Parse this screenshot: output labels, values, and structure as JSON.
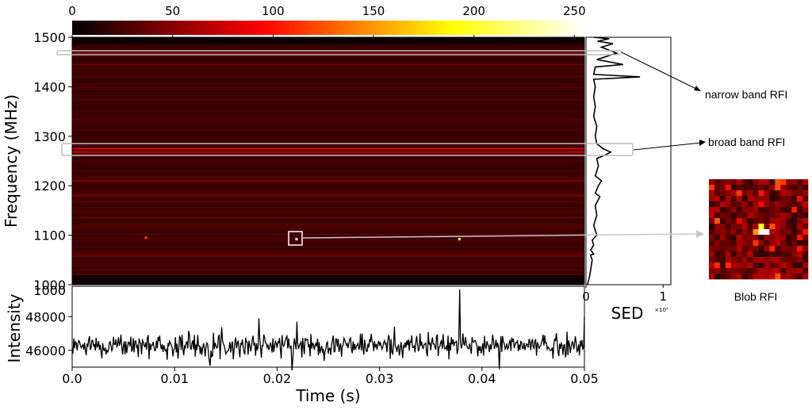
{
  "chart_data": [
    {
      "type": "heatmap",
      "panel": "spectrogram",
      "xlim": [
        0.0,
        0.05
      ],
      "ylim": [
        1000,
        1500
      ],
      "ylabel": "Frequency (MHz)",
      "yticks": [
        "1000",
        "1100",
        "1200",
        "1300",
        "1400",
        "1500"
      ],
      "colorbar": {
        "range": [
          0,
          255
        ],
        "ticks": [
          "0",
          "50",
          "100",
          "150",
          "200",
          "250"
        ],
        "colormap": "hot"
      },
      "background_level": 20,
      "rfi_lines": [
        {
          "freq": 1468,
          "level": 55
        },
        {
          "freq": 1445,
          "level": 40
        },
        {
          "freq": 1420,
          "level": 35
        },
        {
          "freq": 1275,
          "level": 95
        },
        {
          "freq": 1268,
          "level": 85
        },
        {
          "freq": 1262,
          "level": 70
        },
        {
          "freq": 1210,
          "level": 50
        },
        {
          "freq": 1180,
          "level": 45
        },
        {
          "freq": 1060,
          "level": 40
        }
      ],
      "blobs": [
        {
          "t": 0.0219,
          "freq": 1092,
          "level": 240
        },
        {
          "t": 0.0378,
          "freq": 1092,
          "level": 200
        },
        {
          "t": 0.0072,
          "freq": 1095,
          "level": 120
        }
      ]
    },
    {
      "type": "line",
      "panel": "SED",
      "xlabel": "SED",
      "xtick_labels": [
        "0",
        "1"
      ],
      "x_multiplier": "×10⁵",
      "xlim": [
        0,
        1.1
      ],
      "ylim": [
        1000,
        1500
      ],
      "points": [
        [
          0.02,
          1000
        ],
        [
          0.05,
          1020
        ],
        [
          0.08,
          1050
        ],
        [
          0.06,
          1060
        ],
        [
          0.1,
          1062
        ],
        [
          0.06,
          1070
        ],
        [
          0.1,
          1080
        ],
        [
          0.08,
          1090
        ],
        [
          0.14,
          1100
        ],
        [
          0.1,
          1120
        ],
        [
          0.14,
          1140
        ],
        [
          0.12,
          1160
        ],
        [
          0.18,
          1178
        ],
        [
          0.12,
          1185
        ],
        [
          0.16,
          1200
        ],
        [
          0.2,
          1210
        ],
        [
          0.12,
          1220
        ],
        [
          0.16,
          1240
        ],
        [
          0.14,
          1255
        ],
        [
          0.25,
          1262
        ],
        [
          0.32,
          1268
        ],
        [
          0.22,
          1275
        ],
        [
          0.14,
          1285
        ],
        [
          0.12,
          1300
        ],
        [
          0.14,
          1320
        ],
        [
          0.1,
          1340
        ],
        [
          0.12,
          1360
        ],
        [
          0.1,
          1380
        ],
        [
          0.12,
          1400
        ],
        [
          0.1,
          1415
        ],
        [
          0.7,
          1420
        ],
        [
          0.1,
          1425
        ],
        [
          0.12,
          1440
        ],
        [
          0.48,
          1445
        ],
        [
          0.14,
          1455
        ],
        [
          0.4,
          1468
        ],
        [
          0.2,
          1480
        ],
        [
          0.35,
          1487
        ],
        [
          0.15,
          1492
        ],
        [
          0.3,
          1497
        ],
        [
          0.1,
          1500
        ]
      ]
    },
    {
      "type": "line",
      "panel": "intensity",
      "xlabel": "Time (s)",
      "ylabel": "Intensity",
      "xlim": [
        0.0,
        0.05
      ],
      "ylim": [
        45000,
        49800
      ],
      "xticks": [
        "0.0",
        "0.01",
        "0.02",
        "0.03",
        "0.04",
        "0.05"
      ],
      "yticks": [
        "46000",
        "48000"
      ],
      "extra_ytick": "1000",
      "mean": 46300,
      "noise_std": 350,
      "spikes": [
        {
          "t": 0.0378,
          "value": 49600
        },
        {
          "t": 0.0182,
          "value": 47900
        },
        {
          "t": 0.05,
          "value": 48000
        },
        {
          "t": 0.0219,
          "value": 47700
        }
      ]
    }
  ],
  "annotations": {
    "narrow_band": "narrow band RFI",
    "broad_band": "broad band RFI",
    "blob": "Blob RFI"
  }
}
